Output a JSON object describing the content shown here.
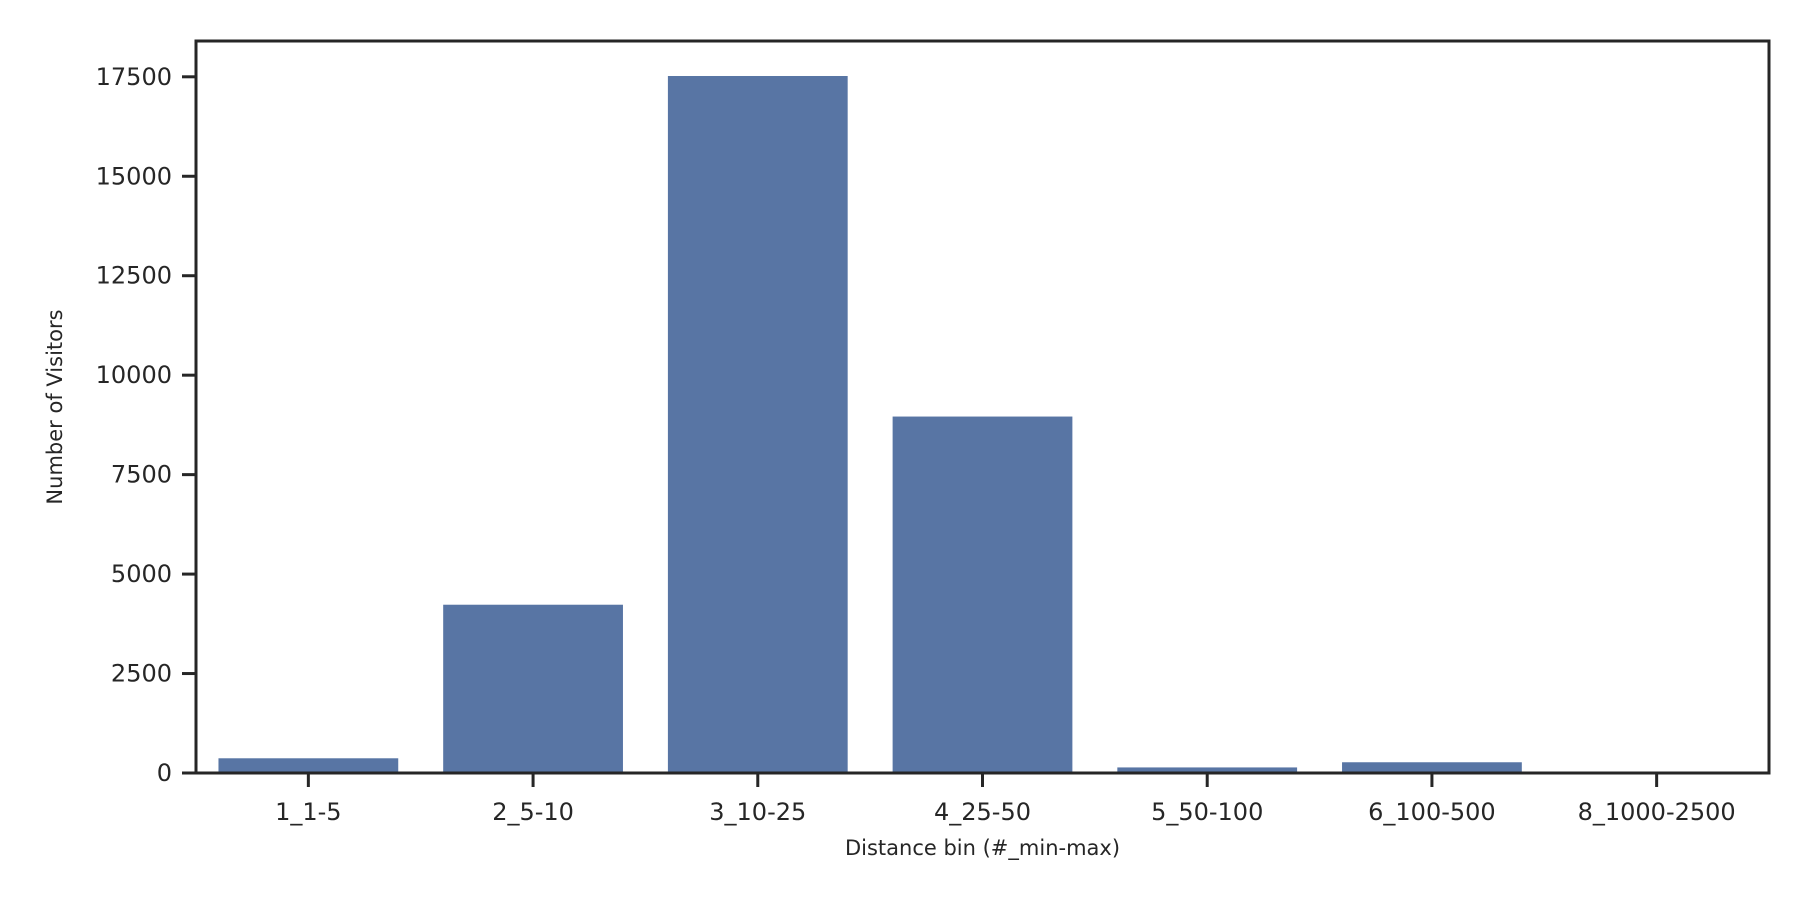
{
  "chart_data": {
    "type": "bar",
    "title": "",
    "xlabel": "Distance bin (#_min-max)",
    "ylabel": "Number of Visitors",
    "categories": [
      "1_1-5",
      "2_5-10",
      "3_10-25",
      "4_25-50",
      "5_50-100",
      "6_100-500",
      "8_1000-2500"
    ],
    "values": [
      370,
      4230,
      17520,
      8960,
      140,
      270,
      15
    ],
    "ylim": [
      0,
      18400
    ],
    "yticks": [
      0,
      2500,
      5000,
      7500,
      10000,
      12500,
      15000,
      17500
    ],
    "grid": false,
    "legend": "none",
    "bar_color": "#5875a4",
    "axis_color": "#262626"
  }
}
